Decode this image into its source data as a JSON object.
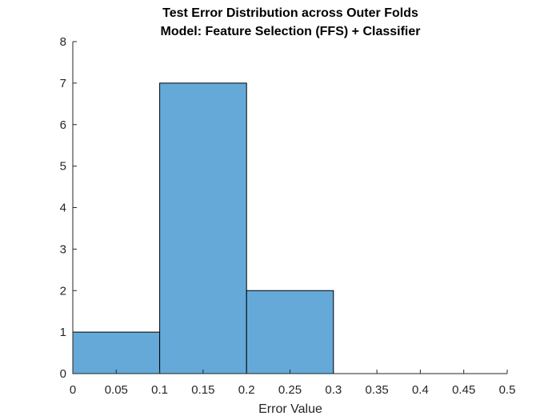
{
  "chart_data": {
    "type": "bar",
    "title": "Test Error Distribution across Outer Folds",
    "subtitle": "Model: Feature Selection (FFS) + Classifier",
    "xlabel": "Error Value",
    "ylabel": "",
    "xlim": [
      0,
      0.5
    ],
    "ylim": [
      0,
      8
    ],
    "bin_edges": [
      0,
      0.1,
      0.2,
      0.3
    ],
    "values": [
      1,
      7,
      2
    ],
    "bar_color": "#64a9d8",
    "grid": false,
    "xticks": [
      "0",
      "0.05",
      "0.1",
      "0.15",
      "0.2",
      "0.25",
      "0.3",
      "0.35",
      "0.4",
      "0.45",
      "0.5"
    ],
    "yticks": [
      "0",
      "1",
      "2",
      "3",
      "4",
      "5",
      "6",
      "7",
      "8"
    ]
  }
}
